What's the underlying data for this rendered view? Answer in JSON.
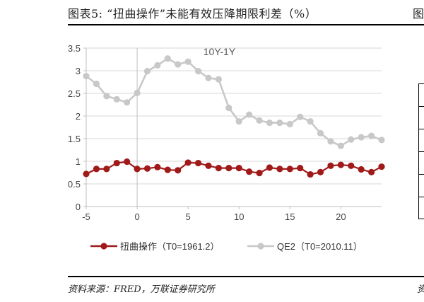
{
  "header": {
    "title": "图表5:  “扭曲操作”未能有效压降期限利差（%）",
    "title_right": "图"
  },
  "footer": {
    "source": "资料来源：FRED，万联证券研究所",
    "source_right": "资"
  },
  "chart_data": {
    "type": "line",
    "title": "",
    "annotation": "10Y-1Y",
    "xlabel": "",
    "ylabel": "",
    "xlim": [
      -5,
      24
    ],
    "ylim": [
      0,
      3.5
    ],
    "xticks": [
      -5,
      0,
      5,
      10,
      15,
      20
    ],
    "yticks": [
      0,
      0.5,
      1,
      1.5,
      2,
      2.5,
      3,
      3.5
    ],
    "ytick_labels": [
      "0",
      "0.5",
      "1",
      "1.5",
      "2",
      "2.5",
      "3",
      "3.5"
    ],
    "grid": "horizontal",
    "legend_position": "bottom",
    "x": [
      -5,
      -4,
      -3,
      -2,
      -1,
      0,
      1,
      2,
      3,
      4,
      5,
      6,
      7,
      8,
      9,
      10,
      11,
      12,
      13,
      14,
      15,
      16,
      17,
      18,
      19,
      20,
      21,
      22,
      23,
      24
    ],
    "series": [
      {
        "name": "扭曲操作（T0=1961.2）",
        "color": "#a11a1a",
        "values": [
          0.72,
          0.83,
          0.83,
          0.96,
          0.99,
          0.83,
          0.84,
          0.87,
          0.81,
          0.8,
          0.97,
          0.96,
          0.9,
          0.85,
          0.85,
          0.85,
          0.77,
          0.74,
          0.86,
          0.83,
          0.83,
          0.85,
          0.71,
          0.76,
          0.9,
          0.92,
          0.9,
          0.82,
          0.76,
          0.88
        ]
      },
      {
        "name": "QE2（T0=2010.11）",
        "color": "#c8c8c8",
        "values": [
          2.88,
          2.71,
          2.44,
          2.37,
          2.3,
          2.51,
          2.99,
          3.12,
          3.27,
          3.14,
          3.2,
          2.99,
          2.84,
          2.81,
          2.18,
          1.88,
          2.03,
          1.9,
          1.85,
          1.85,
          1.82,
          1.98,
          1.88,
          1.62,
          1.44,
          1.34,
          1.48,
          1.53,
          1.56,
          1.47
        ]
      }
    ]
  }
}
